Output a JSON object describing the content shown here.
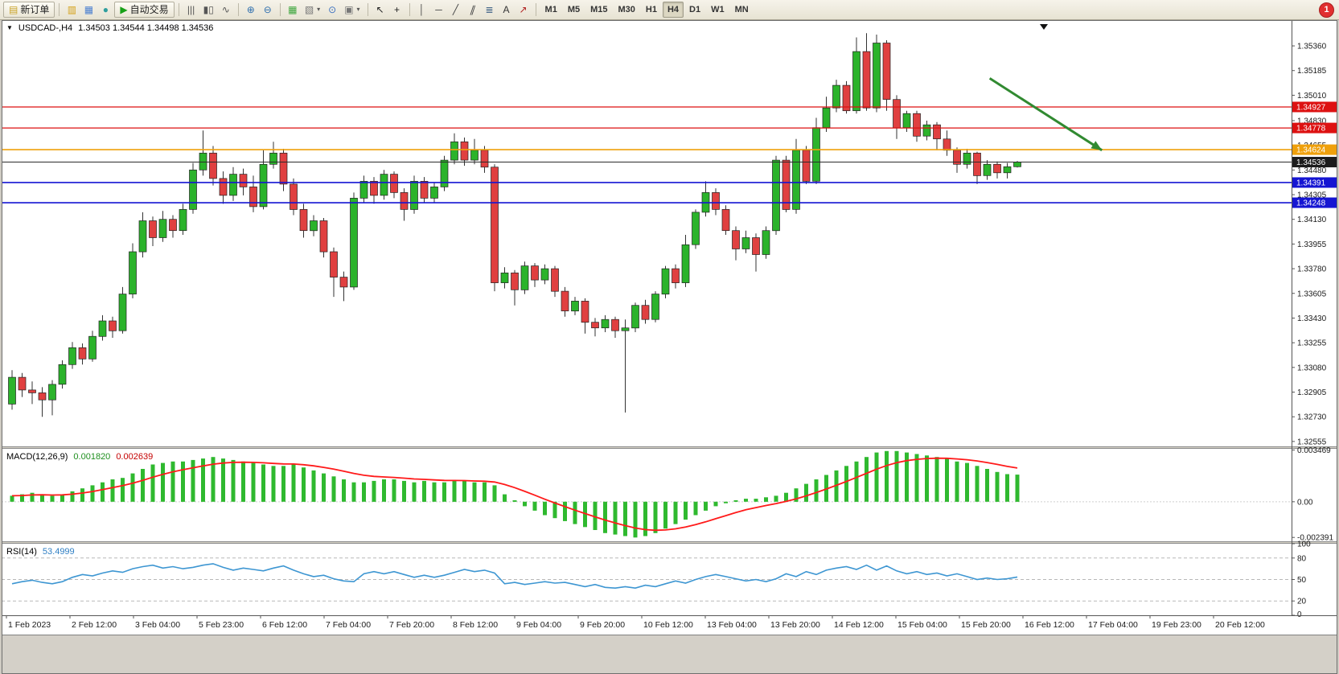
{
  "icons": {
    "window_menu": "▼"
  },
  "toolbar": {
    "notification_badge": "1",
    "active_timeframe": "H4",
    "timeframes": [
      "M1",
      "M5",
      "M15",
      "M30",
      "H1",
      "H4",
      "D1",
      "W1",
      "MN"
    ],
    "items": [
      {
        "name": "new-order-button",
        "glyph": "▤",
        "color": "#c9a227",
        "label": "新订单"
      },
      {
        "type": "sep"
      },
      {
        "name": "market-watch-button",
        "glyph": "▥",
        "color": "#d4a017"
      },
      {
        "name": "data-window-button",
        "glyph": "▦",
        "color": "#4a7fd0"
      },
      {
        "name": "navigator-button",
        "glyph": "●",
        "color": "#2f9e9e"
      },
      {
        "name": "autotrading-button",
        "glyph": "▶",
        "color": "#17a017",
        "label": "自动交易"
      },
      {
        "type": "sep"
      },
      {
        "name": "bar-chart-button",
        "glyph": "|||",
        "color": "#555555"
      },
      {
        "name": "candlestick-chart-button",
        "glyph": "▮▯",
        "color": "#555555"
      },
      {
        "name": "line-chart-button",
        "glyph": "∿",
        "color": "#555555"
      },
      {
        "type": "sep"
      },
      {
        "name": "zoom-in-button",
        "glyph": "⊕",
        "color": "#2f6fae"
      },
      {
        "name": "zoom-out-button",
        "glyph": "⊖",
        "color": "#2f6fae"
      },
      {
        "type": "sep"
      },
      {
        "name": "tile-windows-button",
        "glyph": "▦",
        "color": "#3aa53a"
      },
      {
        "name": "new-chart-button",
        "glyph": "▧",
        "color": "#777777",
        "caret": true
      },
      {
        "name": "period-converter-button",
        "glyph": "⊙",
        "color": "#3a6fc0"
      },
      {
        "name": "templates-button",
        "glyph": "▣",
        "color": "#777777",
        "caret": true
      },
      {
        "type": "sep"
      },
      {
        "name": "cursor-button",
        "glyph": "↖",
        "color": "#222222"
      },
      {
        "name": "crosshair-button",
        "glyph": "+",
        "color": "#222222"
      },
      {
        "type": "sep"
      },
      {
        "name": "vertical-line-button",
        "glyph": "│",
        "color": "#444444"
      },
      {
        "name": "horizontal-line-button",
        "glyph": "─",
        "color": "#444444"
      },
      {
        "name": "trendline-button",
        "glyph": "╱",
        "color": "#444444"
      },
      {
        "name": "channel-button",
        "glyph": "∥",
        "color": "#444444",
        "skew": true
      },
      {
        "name": "fibonacci-button",
        "glyph": "≣",
        "color": "#446688"
      },
      {
        "name": "text-button",
        "glyph": "A",
        "color": "#333333"
      },
      {
        "name": "arrows-button",
        "glyph": "↗",
        "color": "#b02020"
      },
      {
        "type": "sep"
      }
    ]
  },
  "chart_data": {
    "type": "candlestick",
    "symbol": "USDCAD-",
    "timeframe": "H4",
    "colors": {
      "up": "#2bb32b",
      "down": "#e04040"
    },
    "main": {
      "title": "USDCAD-,H4",
      "ohlc_text": "1.34503 1.34544 1.34498 1.34536",
      "price_max": 1.3552,
      "price_min": 1.3252,
      "axis_ticks": [
        "1.35360",
        "1.35185",
        "1.35010",
        "1.34830",
        "1.34655",
        "1.34480",
        "1.34305",
        "1.34130",
        "1.33955",
        "1.33780",
        "1.33605",
        "1.33430",
        "1.33255",
        "1.33080",
        "1.32905",
        "1.32730",
        "1.32555"
      ],
      "hlines": [
        {
          "price": 1.34927,
          "label": "1.34927",
          "color": "#dd1111",
          "width": 1.3
        },
        {
          "price": 1.34778,
          "label": "1.34778",
          "color": "#dd1111",
          "width": 1.3
        },
        {
          "price": 1.34624,
          "label": "1.34624",
          "color": "#efa00b",
          "width": 1.6
        },
        {
          "price": 1.34391,
          "label": "1.34391",
          "color": "#1515d2",
          "width": 1.6
        },
        {
          "price": 1.34248,
          "label": "1.34248",
          "color": "#1515d2",
          "width": 1.6
        }
      ],
      "current_price_line": {
        "price": 1.34536,
        "label": "1.34536",
        "color": "#2b2b2b"
      },
      "annotation_arrow": {
        "x1_frac": 0.766,
        "price1": 1.3513,
        "x2_frac": 0.853,
        "price2": 1.3462,
        "color": "#318a31"
      },
      "candles": [
        [
          1.3282,
          1.3306,
          1.3278,
          1.3301
        ],
        [
          1.3301,
          1.3304,
          1.3287,
          1.3292
        ],
        [
          1.3292,
          1.3298,
          1.3282,
          1.329
        ],
        [
          1.329,
          1.3294,
          1.3273,
          1.3285
        ],
        [
          1.3285,
          1.3299,
          1.3274,
          1.3296
        ],
        [
          1.3296,
          1.3313,
          1.3293,
          1.331
        ],
        [
          1.331,
          1.3326,
          1.3307,
          1.3322
        ],
        [
          1.3322,
          1.3325,
          1.331,
          1.3314
        ],
        [
          1.3314,
          1.3334,
          1.3312,
          1.333
        ],
        [
          1.333,
          1.3345,
          1.3327,
          1.3341
        ],
        [
          1.3341,
          1.3344,
          1.3329,
          1.3334
        ],
        [
          1.3334,
          1.3365,
          1.3332,
          1.336
        ],
        [
          1.336,
          1.3396,
          1.3357,
          1.339
        ],
        [
          1.339,
          1.3418,
          1.3386,
          1.3412
        ],
        [
          1.3412,
          1.3415,
          1.3394,
          1.34
        ],
        [
          1.34,
          1.3419,
          1.3397,
          1.3413
        ],
        [
          1.3413,
          1.3416,
          1.34,
          1.3405
        ],
        [
          1.3405,
          1.3424,
          1.3402,
          1.342
        ],
        [
          1.342,
          1.3453,
          1.3417,
          1.3448
        ],
        [
          1.3448,
          1.3476,
          1.3444,
          1.346
        ],
        [
          1.346,
          1.3465,
          1.3437,
          1.3442
        ],
        [
          1.3442,
          1.3447,
          1.3424,
          1.343
        ],
        [
          1.343,
          1.345,
          1.3426,
          1.3445
        ],
        [
          1.3445,
          1.3449,
          1.343,
          1.3436
        ],
        [
          1.3436,
          1.3444,
          1.3418,
          1.3422
        ],
        [
          1.3422,
          1.3462,
          1.342,
          1.3452
        ],
        [
          1.3452,
          1.3468,
          1.3449,
          1.346
        ],
        [
          1.346,
          1.3463,
          1.3433,
          1.3438
        ],
        [
          1.3438,
          1.3442,
          1.3416,
          1.342
        ],
        [
          1.342,
          1.3424,
          1.34,
          1.3405
        ],
        [
          1.3405,
          1.3416,
          1.3401,
          1.3412
        ],
        [
          1.3412,
          1.3414,
          1.3386,
          1.339
        ],
        [
          1.339,
          1.3393,
          1.3358,
          1.3372
        ],
        [
          1.3372,
          1.3376,
          1.3355,
          1.3365
        ],
        [
          1.3365,
          1.3432,
          1.3363,
          1.3428
        ],
        [
          1.3428,
          1.3444,
          1.3425,
          1.344
        ],
        [
          1.344,
          1.3443,
          1.3424,
          1.343
        ],
        [
          1.343,
          1.3448,
          1.3427,
          1.3445
        ],
        [
          1.3445,
          1.3447,
          1.3428,
          1.3432
        ],
        [
          1.3432,
          1.3435,
          1.3412,
          1.342
        ],
        [
          1.342,
          1.3444,
          1.3417,
          1.344
        ],
        [
          1.344,
          1.3443,
          1.3425,
          1.3428
        ],
        [
          1.3428,
          1.3439,
          1.3425,
          1.3436
        ],
        [
          1.3436,
          1.3458,
          1.3433,
          1.3455
        ],
        [
          1.3455,
          1.3474,
          1.3452,
          1.3468
        ],
        [
          1.3468,
          1.3471,
          1.3451,
          1.3455
        ],
        [
          1.3455,
          1.347,
          1.3452,
          1.3462
        ],
        [
          1.3462,
          1.3465,
          1.3446,
          1.345
        ],
        [
          1.345,
          1.3452,
          1.3362,
          1.3368
        ],
        [
          1.3368,
          1.3379,
          1.3364,
          1.3375
        ],
        [
          1.3375,
          1.3377,
          1.3352,
          1.3363
        ],
        [
          1.3363,
          1.3383,
          1.336,
          1.338
        ],
        [
          1.338,
          1.3382,
          1.3365,
          1.337
        ],
        [
          1.337,
          1.3381,
          1.3367,
          1.3378
        ],
        [
          1.3378,
          1.338,
          1.3358,
          1.3362
        ],
        [
          1.3362,
          1.3365,
          1.3344,
          1.3348
        ],
        [
          1.3348,
          1.3358,
          1.3345,
          1.3355
        ],
        [
          1.3355,
          1.3357,
          1.3332,
          1.334
        ],
        [
          1.334,
          1.3343,
          1.333,
          1.3336
        ],
        [
          1.3336,
          1.3345,
          1.3333,
          1.3342
        ],
        [
          1.3342,
          1.3344,
          1.3329,
          1.3334
        ],
        [
          1.3334,
          1.3342,
          1.3276,
          1.3336
        ],
        [
          1.3336,
          1.3354,
          1.3333,
          1.3352
        ],
        [
          1.3352,
          1.3356,
          1.3339,
          1.3342
        ],
        [
          1.3342,
          1.3362,
          1.334,
          1.336
        ],
        [
          1.336,
          1.338,
          1.3357,
          1.3378
        ],
        [
          1.3378,
          1.3381,
          1.3364,
          1.3368
        ],
        [
          1.3368,
          1.3402,
          1.3365,
          1.3395
        ],
        [
          1.3395,
          1.342,
          1.3392,
          1.3418
        ],
        [
          1.3418,
          1.344,
          1.3415,
          1.3432
        ],
        [
          1.3432,
          1.3435,
          1.3416,
          1.342
        ],
        [
          1.342,
          1.3423,
          1.3402,
          1.3405
        ],
        [
          1.3405,
          1.3408,
          1.3384,
          1.3392
        ],
        [
          1.3392,
          1.3405,
          1.3389,
          1.34
        ],
        [
          1.34,
          1.3403,
          1.3376,
          1.3388
        ],
        [
          1.3388,
          1.3408,
          1.3385,
          1.3405
        ],
        [
          1.3405,
          1.3458,
          1.3402,
          1.3455
        ],
        [
          1.3455,
          1.3458,
          1.3418,
          1.342
        ],
        [
          1.342,
          1.347,
          1.3417,
          1.3462
        ],
        [
          1.3462,
          1.3465,
          1.3438,
          1.344
        ],
        [
          1.344,
          1.3485,
          1.3438,
          1.3478
        ],
        [
          1.3478,
          1.35,
          1.3475,
          1.3492
        ],
        [
          1.3492,
          1.3512,
          1.3489,
          1.3508
        ],
        [
          1.3508,
          1.3511,
          1.3488,
          1.349
        ],
        [
          1.349,
          1.3542,
          1.3488,
          1.3532
        ],
        [
          1.3532,
          1.3545,
          1.349,
          1.3492
        ],
        [
          1.3492,
          1.3544,
          1.3489,
          1.3538
        ],
        [
          1.3538,
          1.354,
          1.349,
          1.3498
        ],
        [
          1.3498,
          1.3501,
          1.347,
          1.3478
        ],
        [
          1.3478,
          1.349,
          1.3475,
          1.3488
        ],
        [
          1.3488,
          1.349,
          1.3468,
          1.3472
        ],
        [
          1.3472,
          1.3483,
          1.3469,
          1.348
        ],
        [
          1.348,
          1.3482,
          1.3462,
          1.347
        ],
        [
          1.347,
          1.3476,
          1.3458,
          1.3462
        ],
        [
          1.3462,
          1.3464,
          1.3446,
          1.3452
        ],
        [
          1.3452,
          1.3463,
          1.3449,
          1.346
        ],
        [
          1.346,
          1.3461,
          1.3438,
          1.3444
        ],
        [
          1.3444,
          1.3455,
          1.3441,
          1.3452
        ],
        [
          1.3452,
          1.3454,
          1.3442,
          1.3446
        ],
        [
          1.3446,
          1.3453,
          1.3442,
          1.34503
        ],
        [
          1.34503,
          1.34544,
          1.34498,
          1.34536
        ]
      ]
    },
    "macd": {
      "title": "MACD(12,26,9)",
      "value_main": "0.001820",
      "value_signal": "0.002639",
      "max": 0.00355,
      "min": -0.00265,
      "signal_period": 9,
      "colors": {
        "histogram": "#2fb92f",
        "signal": "#ff1a1a"
      },
      "axis_ticks": [
        {
          "label": "0.003469",
          "value": 0.003469
        },
        {
          "label": "0.00",
          "value": 0
        },
        {
          "label": "-0.002391",
          "value": -0.002391
        }
      ],
      "histogram": [
        0.0004,
        0.0005,
        0.0006,
        0.0005,
        0.0004,
        0.0005,
        0.0007,
        0.0009,
        0.0011,
        0.0013,
        0.0015,
        0.0016,
        0.0019,
        0.0022,
        0.0025,
        0.0026,
        0.0027,
        0.0027,
        0.0028,
        0.0029,
        0.003,
        0.0029,
        0.0028,
        0.0027,
        0.0026,
        0.0025,
        0.0024,
        0.0024,
        0.0025,
        0.0023,
        0.0021,
        0.0019,
        0.0017,
        0.0015,
        0.0013,
        0.0013,
        0.0014,
        0.0015,
        0.0015,
        0.0014,
        0.0013,
        0.0014,
        0.0013,
        0.0013,
        0.0014,
        0.0014,
        0.0013,
        0.0013,
        0.0011,
        0.0005,
        0.0001,
        -0.0003,
        -0.0006,
        -0.0009,
        -0.0011,
        -0.0013,
        -0.0015,
        -0.0017,
        -0.0019,
        -0.0021,
        -0.0022,
        -0.0023,
        -0.0024,
        -0.0023,
        -0.0021,
        -0.0018,
        -0.0015,
        -0.0012,
        -0.0009,
        -0.0006,
        -0.0003,
        -0.0001,
        0.0001,
        0.0002,
        0.0002,
        0.0003,
        0.0004,
        0.0006,
        0.0009,
        0.0012,
        0.0015,
        0.0018,
        0.0021,
        0.0024,
        0.0027,
        0.003,
        0.0033,
        0.0034,
        0.0034,
        0.0033,
        0.0032,
        0.0031,
        0.003,
        0.0029,
        0.0027,
        0.0026,
        0.0024,
        0.0022,
        0.002,
        0.00185,
        0.00182
      ]
    },
    "rsi": {
      "title": "RSI(14)",
      "value": "53.4999",
      "max": 100,
      "min": 0,
      "levels": [
        80,
        50,
        20
      ],
      "color": "#3d96d2",
      "axis_ticks": [
        {
          "label": "100",
          "value": 100
        },
        {
          "label": "80",
          "value": 80
        },
        {
          "label": "50",
          "value": 50
        },
        {
          "label": "20",
          "value": 20
        },
        {
          "label": "0",
          "value": 0
        }
      ],
      "values": [
        44,
        47,
        49,
        46,
        44,
        47,
        53,
        57,
        55,
        59,
        62,
        60,
        65,
        68,
        70,
        66,
        68,
        65,
        67,
        70,
        72,
        67,
        63,
        66,
        64,
        62,
        66,
        69,
        63,
        58,
        54,
        56,
        51,
        48,
        47,
        58,
        61,
        58,
        61,
        57,
        53,
        56,
        53,
        56,
        60,
        64,
        61,
        63,
        59,
        44,
        46,
        43,
        45,
        47,
        45,
        46,
        43,
        40,
        43,
        39,
        38,
        40,
        38,
        42,
        40,
        44,
        48,
        45,
        50,
        54,
        57,
        54,
        51,
        48,
        50,
        47,
        51,
        58,
        54,
        61,
        57,
        63,
        66,
        68,
        64,
        70,
        63,
        69,
        62,
        58,
        61,
        57,
        59,
        55,
        58,
        54,
        50,
        52,
        50,
        51,
        53.5
      ]
    },
    "time_axis": [
      "1 Feb 2023",
      "2 Feb 12:00",
      "3 Feb 04:00",
      "5 Feb 23:00",
      "6 Feb 12:00",
      "7 Feb 04:00",
      "7 Feb 20:00",
      "8 Feb 12:00",
      "9 Feb 04:00",
      "9 Feb 20:00",
      "10 Feb 12:00",
      "13 Feb 04:00",
      "13 Feb 20:00",
      "14 Feb 12:00",
      "15 Feb 04:00",
      "15 Feb 20:00",
      "16 Feb 12:00",
      "17 Feb 04:00",
      "19 Feb 23:00",
      "20 Feb 12:00"
    ]
  }
}
